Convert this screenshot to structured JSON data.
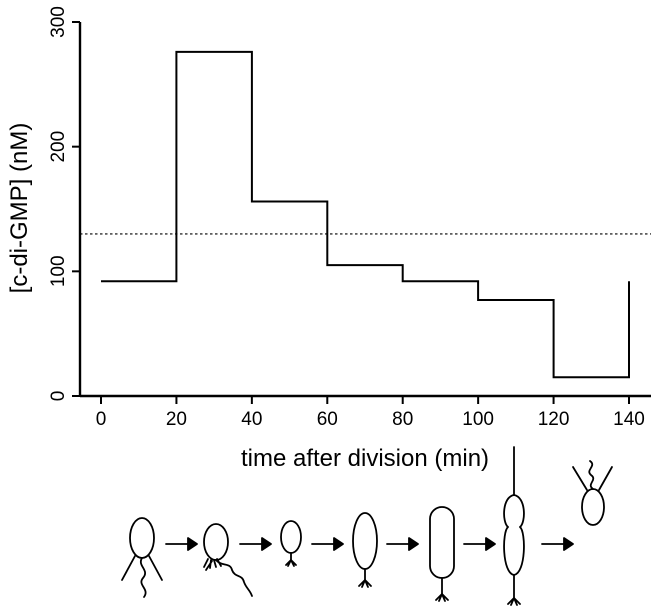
{
  "chart_data": {
    "type": "line",
    "step": true,
    "title": "",
    "xlabel": "time after division (min)",
    "ylabel": "[c-di-GMP] (nM)",
    "xlim": [
      0,
      140
    ],
    "ylim": [
      0,
      300
    ],
    "xticks": [
      0,
      20,
      40,
      60,
      80,
      100,
      120,
      140
    ],
    "yticks": [
      0,
      100,
      200,
      300
    ],
    "grid": false,
    "series": [
      {
        "x": [
          0,
          20,
          20,
          40,
          40,
          60,
          60,
          80,
          80,
          100,
          100,
          120,
          120,
          140,
          140
        ],
        "y": [
          92,
          92,
          276,
          276,
          156,
          156,
          105,
          105,
          92,
          92,
          77,
          77,
          15,
          15,
          92
        ]
      }
    ],
    "reference_line": {
      "y": 130,
      "style": "dotted"
    },
    "color": "#000000",
    "cell_cycle_stages": [
      "swarmer-cell-with-flagellum-and-pili",
      "cell-losing-flagellum",
      "stalked-cell-holdfast",
      "stalked-cell-growing",
      "elongated-stalked-cell",
      "predivisional-cell",
      "new-swarmer-cell"
    ]
  }
}
